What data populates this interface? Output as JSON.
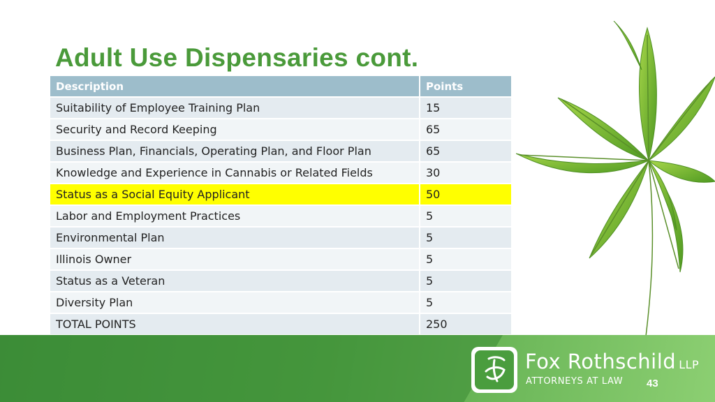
{
  "slide": {
    "title": "Adult Use Dispensaries cont.",
    "page_number": "43"
  },
  "table": {
    "headers": [
      "Description",
      "Points"
    ],
    "rows": [
      {
        "description": "Suitability  of Employee Training Plan",
        "points": "15"
      },
      {
        "description": "Security and Record Keeping",
        "points": "65"
      },
      {
        "description": "Business Plan, Financials, Operating Plan, and Floor Plan",
        "points": "65"
      },
      {
        "description": "Knowledge and Experience in Cannabis or Related Fields",
        "points": "30"
      },
      {
        "description": "Status as a Social Equity Applicant",
        "points": "50"
      },
      {
        "description": "Labor and Employment Practices",
        "points": "5"
      },
      {
        "description": "Environmental Plan",
        "points": "5"
      },
      {
        "description": "Illinois Owner",
        "points": "5"
      },
      {
        "description": "Status as a Veteran",
        "points": "5"
      },
      {
        "description": "Diversity Plan",
        "points": "5"
      },
      {
        "description": "TOTAL POINTS",
        "points": "250"
      }
    ],
    "highlighted_row": "Status as a Social Equity Applicant"
  },
  "branding": {
    "firm_name": "Fox Rothschild",
    "firm_suffix": "LLP",
    "tagline": "ATTORNEYS AT LAW",
    "logo_icon": "fox-rothschild-logo-icon"
  },
  "decoration": {
    "image": "cannabis-leaf-icon"
  },
  "colors": {
    "title": "#4a9a3a",
    "header_bg": "#9dbdcb",
    "highlight": "#ffff00",
    "footer_green": "#52a445"
  }
}
